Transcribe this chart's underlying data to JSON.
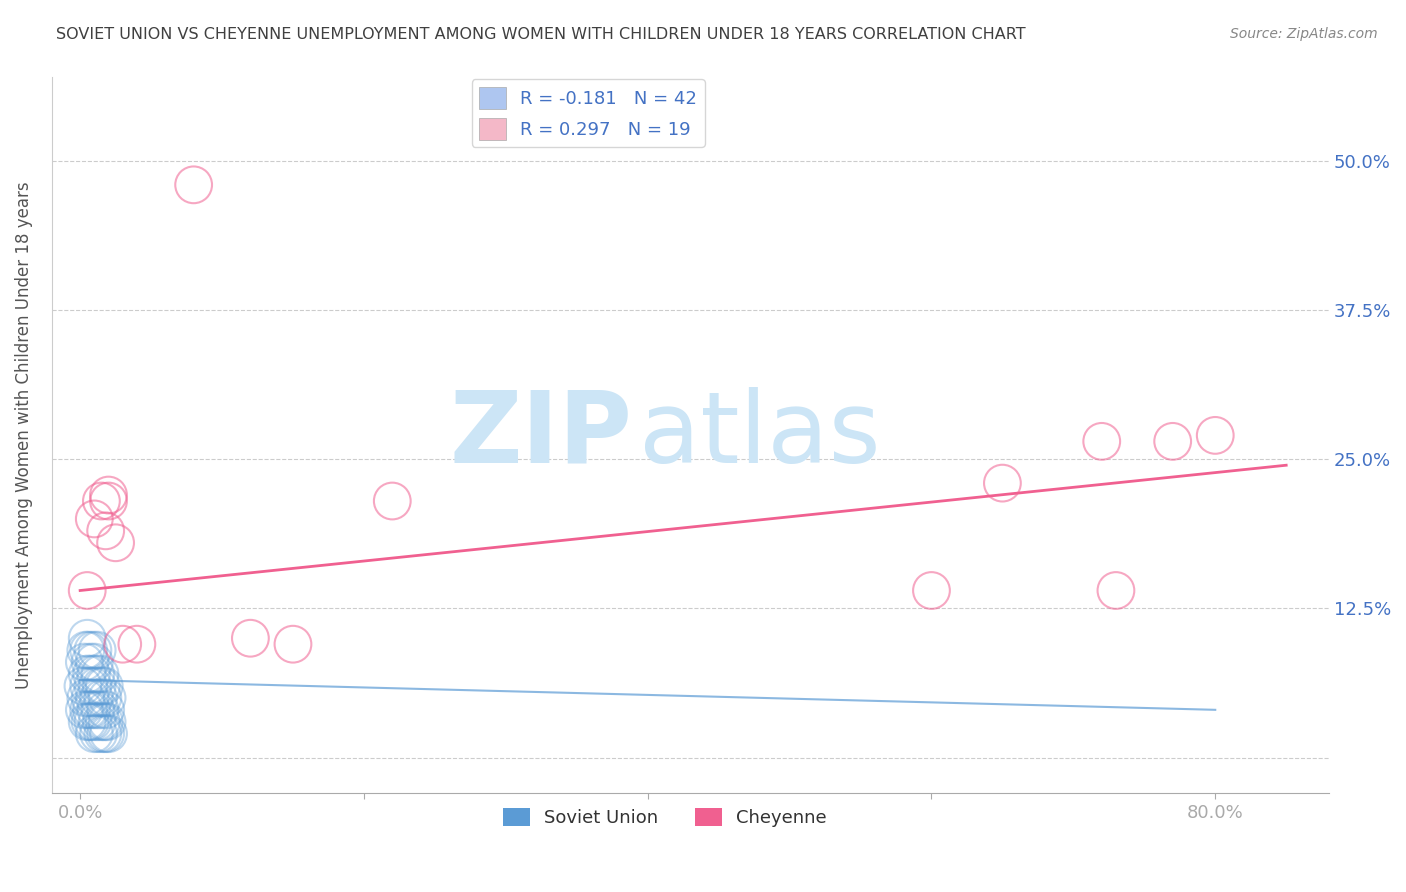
{
  "title": "SOVIET UNION VS CHEYENNE UNEMPLOYMENT AMONG WOMEN WITH CHILDREN UNDER 18 YEARS CORRELATION CHART",
  "source": "Source: ZipAtlas.com",
  "ylabel": "Unemployment Among Women with Children Under 18 years",
  "x_ticks": [
    0.0,
    0.2,
    0.4,
    0.6,
    0.8
  ],
  "x_tick_labels": [
    "0.0%",
    "",
    "",
    "",
    "80.0%"
  ],
  "y_ticks": [
    0.0,
    0.125,
    0.25,
    0.375,
    0.5
  ],
  "y_tick_labels_right": [
    "",
    "12.5%",
    "25.0%",
    "37.5%",
    "50.0%"
  ],
  "xlim": [
    -0.02,
    0.88
  ],
  "ylim": [
    -0.03,
    0.57
  ],
  "legend_label1": "R = -0.181   N = 42",
  "legend_label2": "R = 0.297   N = 19",
  "legend_color1": "#aec6f0",
  "legend_color2": "#f4b8c8",
  "soviet_union_x": [
    0.002,
    0.003,
    0.003,
    0.004,
    0.004,
    0.005,
    0.005,
    0.005,
    0.006,
    0.006,
    0.006,
    0.007,
    0.007,
    0.007,
    0.008,
    0.008,
    0.009,
    0.009,
    0.009,
    0.01,
    0.01,
    0.01,
    0.011,
    0.011,
    0.012,
    0.012,
    0.012,
    0.013,
    0.013,
    0.014,
    0.014,
    0.015,
    0.015,
    0.016,
    0.016,
    0.017,
    0.017,
    0.018,
    0.018,
    0.019,
    0.019,
    0.02
  ],
  "soviet_union_y": [
    0.06,
    0.04,
    0.08,
    0.05,
    0.09,
    0.03,
    0.07,
    0.1,
    0.04,
    0.06,
    0.09,
    0.03,
    0.05,
    0.08,
    0.04,
    0.07,
    0.03,
    0.06,
    0.09,
    0.02,
    0.05,
    0.08,
    0.04,
    0.07,
    0.03,
    0.06,
    0.09,
    0.02,
    0.05,
    0.04,
    0.07,
    0.03,
    0.06,
    0.02,
    0.05,
    0.03,
    0.06,
    0.02,
    0.04,
    0.03,
    0.05,
    0.02
  ],
  "soviet_line_x": [
    0.0,
    0.8
  ],
  "soviet_line_y": [
    0.065,
    0.04
  ],
  "cheyenne_x": [
    0.005,
    0.01,
    0.015,
    0.018,
    0.02,
    0.02,
    0.025,
    0.03,
    0.04,
    0.08,
    0.12,
    0.15,
    0.22,
    0.6,
    0.65,
    0.72,
    0.73,
    0.77,
    0.8
  ],
  "cheyenne_y": [
    0.14,
    0.2,
    0.215,
    0.19,
    0.22,
    0.215,
    0.18,
    0.095,
    0.095,
    0.48,
    0.1,
    0.095,
    0.215,
    0.14,
    0.23,
    0.265,
    0.14,
    0.265,
    0.27
  ],
  "cheyenne_line_x": [
    0.0,
    0.85
  ],
  "cheyenne_line_y": [
    0.14,
    0.245
  ],
  "blue_color": "#5b9bd5",
  "pink_color": "#f06090",
  "blue_alpha": 0.4,
  "pink_alpha": 0.55,
  "dot_size": 700,
  "background_color": "#ffffff",
  "grid_color": "#cccccc",
  "title_color": "#404040",
  "tick_label_color": "#4472c4",
  "ylabel_color": "#555555",
  "watermark_zip": "ZIP",
  "watermark_atlas": "atlas",
  "watermark_color": "#cce5f6"
}
